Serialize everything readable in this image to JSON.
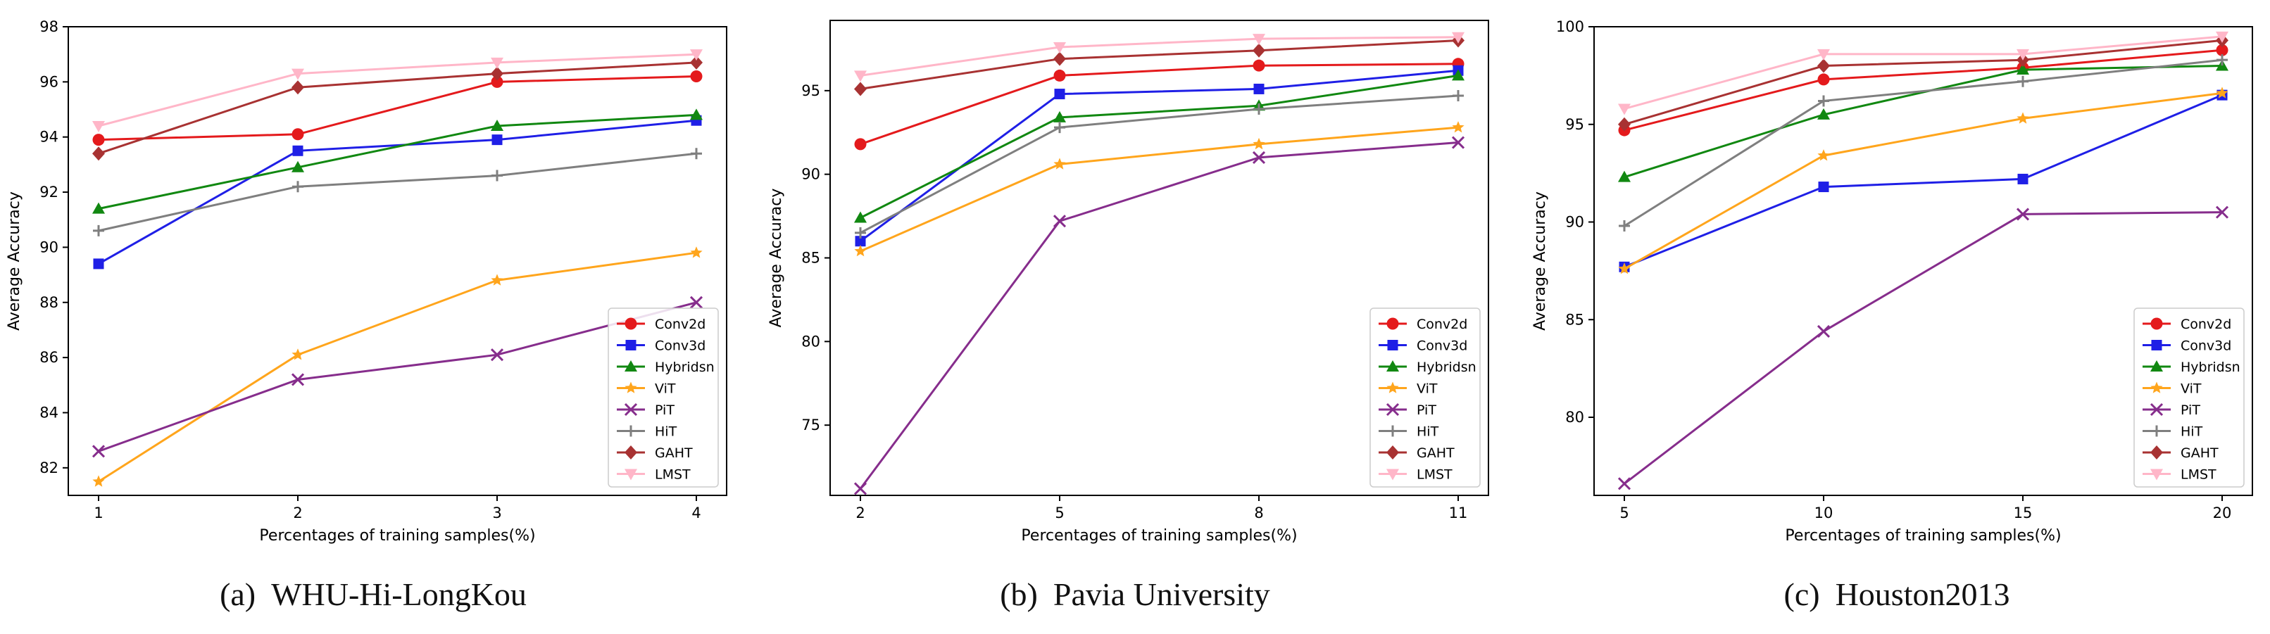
{
  "chart_data": [
    {
      "type": "line",
      "caption_label": "(a)",
      "caption_title": "WHU-Hi-LongKou",
      "xlabel": "Percentages of training samples(%)",
      "ylabel": "Average Accuracy",
      "x": [
        1,
        2,
        3,
        4
      ],
      "xticks": [
        "1",
        "2",
        "3",
        "4"
      ],
      "yticks": [
        82,
        84,
        86,
        88,
        90,
        92,
        94,
        96,
        98
      ],
      "ylim": [
        81,
        98
      ],
      "legend_position": "lower-right",
      "series": [
        {
          "name": "Conv2d",
          "values": [
            93.9,
            94.1,
            96.0,
            96.2
          ]
        },
        {
          "name": "Conv3d",
          "values": [
            89.4,
            93.5,
            93.9,
            94.6
          ]
        },
        {
          "name": "Hybridsn",
          "values": [
            91.4,
            92.9,
            94.4,
            94.8
          ]
        },
        {
          "name": "ViT",
          "values": [
            81.5,
            86.1,
            88.8,
            89.8
          ]
        },
        {
          "name": "PiT",
          "values": [
            82.6,
            85.2,
            86.1,
            88.0
          ]
        },
        {
          "name": "HiT",
          "values": [
            90.6,
            92.2,
            92.6,
            93.4
          ]
        },
        {
          "name": "GAHT",
          "values": [
            93.4,
            95.8,
            96.3,
            96.7
          ]
        },
        {
          "name": "LMST",
          "values": [
            94.4,
            96.3,
            96.7,
            97.0
          ]
        }
      ]
    },
    {
      "type": "line",
      "caption_label": "(b)",
      "caption_title": "Pavia University",
      "xlabel": "Percentages of training samples(%)",
      "ylabel": "Average Accuracy",
      "x": [
        2,
        5,
        8,
        11
      ],
      "xticks": [
        "2",
        "5",
        "8",
        "11"
      ],
      "yticks": [
        75,
        80,
        85,
        90,
        95
      ],
      "ylim": [
        70.8,
        99.2
      ],
      "legend_position": "lower-right",
      "series": [
        {
          "name": "Conv2d",
          "values": [
            91.8,
            95.9,
            96.5,
            96.6
          ]
        },
        {
          "name": "Conv3d",
          "values": [
            86.0,
            94.8,
            95.1,
            96.2
          ]
        },
        {
          "name": "Hybridsn",
          "values": [
            87.4,
            93.4,
            94.1,
            95.9
          ]
        },
        {
          "name": "ViT",
          "values": [
            85.4,
            90.6,
            91.8,
            92.8
          ]
        },
        {
          "name": "PiT",
          "values": [
            71.2,
            87.2,
            91.0,
            91.9
          ]
        },
        {
          "name": "HiT",
          "values": [
            86.5,
            92.8,
            93.9,
            94.7
          ]
        },
        {
          "name": "GAHT",
          "values": [
            95.1,
            96.9,
            97.4,
            98.0
          ]
        },
        {
          "name": "LMST",
          "values": [
            95.9,
            97.6,
            98.1,
            98.2
          ]
        }
      ]
    },
    {
      "type": "line",
      "caption_label": "(c)",
      "caption_title": "Houston2013",
      "xlabel": "Percentages of training samples(%)",
      "ylabel": "Average Accuracy",
      "x": [
        5,
        10,
        15,
        20
      ],
      "xticks": [
        "5",
        "10",
        "15",
        "20"
      ],
      "yticks": [
        80,
        85,
        90,
        95,
        100
      ],
      "ylim": [
        76,
        100
      ],
      "legend_position": "lower-right",
      "series": [
        {
          "name": "Conv2d",
          "values": [
            94.7,
            97.3,
            97.9,
            98.8
          ]
        },
        {
          "name": "Conv3d",
          "values": [
            87.7,
            91.8,
            92.2,
            96.5
          ]
        },
        {
          "name": "Hybridsn",
          "values": [
            92.3,
            95.5,
            97.8,
            98.0
          ]
        },
        {
          "name": "ViT",
          "values": [
            87.6,
            93.4,
            95.3,
            96.6
          ]
        },
        {
          "name": "PiT",
          "values": [
            76.6,
            84.4,
            90.4,
            90.5
          ]
        },
        {
          "name": "HiT",
          "values": [
            89.8,
            96.2,
            97.2,
            98.3
          ]
        },
        {
          "name": "GAHT",
          "values": [
            95.0,
            98.0,
            98.3,
            99.3
          ]
        },
        {
          "name": "LMST",
          "values": [
            95.8,
            98.6,
            98.6,
            99.5
          ]
        }
      ]
    }
  ],
  "styles": {
    "Conv2d": {
      "color": "#e41a1c",
      "marker": "circle"
    },
    "Conv3d": {
      "color": "#1f1fe6",
      "marker": "square"
    },
    "Hybridsn": {
      "color": "#118811",
      "marker": "triangle"
    },
    "ViT": {
      "color": "#ffa51c",
      "marker": "star"
    },
    "PiT": {
      "color": "#862d8c",
      "marker": "x"
    },
    "HiT": {
      "color": "#7f7f7f",
      "marker": "plus"
    },
    "GAHT": {
      "color": "#a83232",
      "marker": "diamond"
    },
    "LMST": {
      "color": "#ffb6c8",
      "marker": "triangle-down"
    }
  }
}
